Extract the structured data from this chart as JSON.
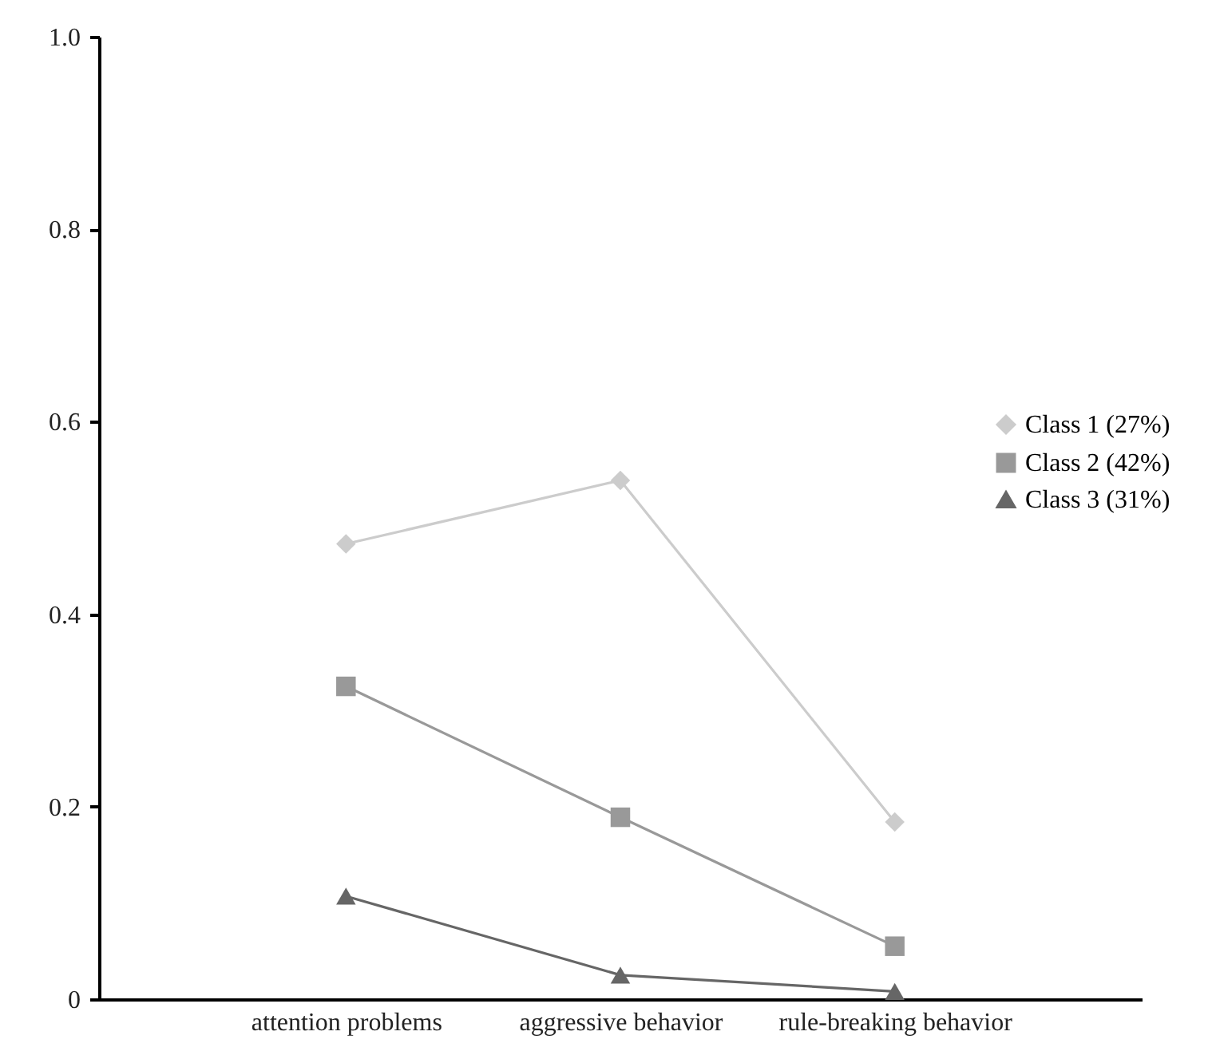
{
  "chart_data": {
    "type": "line",
    "categories": [
      "attention problems",
      "aggressive behavior",
      "rule-breaking behavior"
    ],
    "series": [
      {
        "name": "Class 1 (27%)",
        "color": "#cccccc",
        "marker": "diamond",
        "values": [
          0.473,
          0.539,
          0.184
        ]
      },
      {
        "name": "Class 2 (42%)",
        "color": "#999999",
        "marker": "square",
        "values": [
          0.325,
          0.189,
          0.055
        ]
      },
      {
        "name": "Class 3 (31%)",
        "color": "#666666",
        "marker": "triangle",
        "values": [
          0.107,
          0.025,
          0.008
        ]
      }
    ],
    "ylim": [
      0,
      1
    ],
    "yticks": [
      {
        "value": 0,
        "label": "0"
      },
      0.2,
      0.4,
      0.6,
      0.8,
      {
        "value": 1,
        "label": "1.0"
      }
    ],
    "grid": false,
    "legend": "right",
    "line_style": "solid"
  }
}
